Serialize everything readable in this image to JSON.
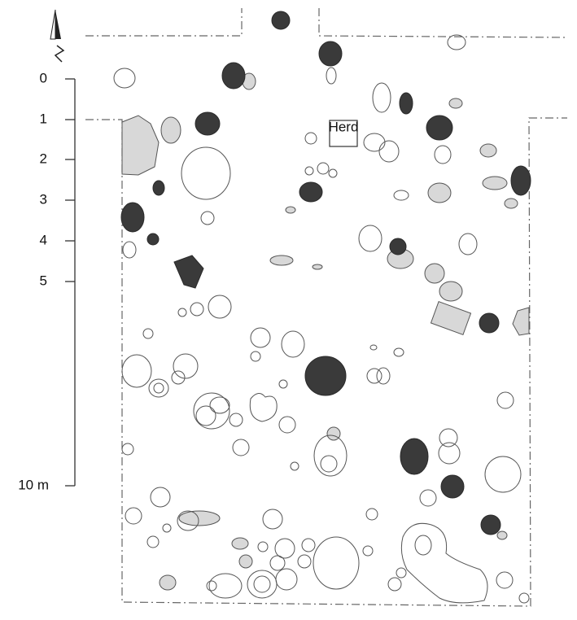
{
  "scale": {
    "labels": [
      "0",
      "1",
      "2",
      "3",
      "4",
      "5",
      "10 m"
    ]
  },
  "features": {
    "hearth": "Herd"
  }
}
